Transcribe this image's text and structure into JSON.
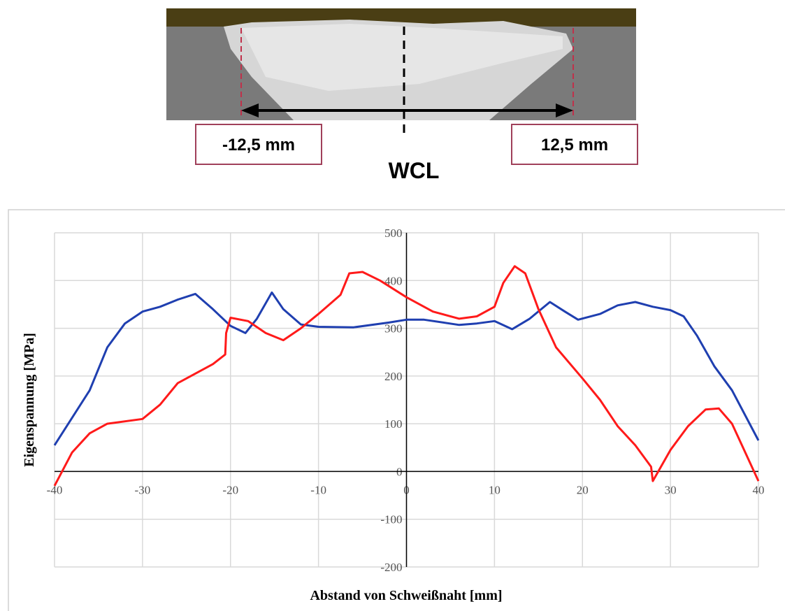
{
  "weld_section": {
    "left_label": "-12,5 mm",
    "right_label": "12,5 mm",
    "center_label": "WCL"
  },
  "chart_data": {
    "type": "line",
    "x_label": "Abstand von Schweißnaht [mm]",
    "y_label": "Eigenspannung [MPa]",
    "xlim": [
      -40,
      40
    ],
    "xticks": [
      -40,
      -30,
      -20,
      -10,
      0,
      10,
      20,
      30,
      40
    ],
    "ylim": [
      -200,
      500
    ],
    "yticks": [
      -200,
      -100,
      0,
      100,
      200,
      300,
      400,
      500
    ],
    "grid": true,
    "series": [
      {
        "color": "#1f3fb0",
        "x": [
          -40,
          -36,
          -34,
          -32,
          -30,
          -28,
          -26,
          -24,
          -22,
          -20,
          -18.3,
          -17,
          -15.3,
          -14,
          -12,
          -10,
          -6,
          -2,
          0,
          2,
          6,
          8,
          10,
          12,
          14,
          16.3,
          18,
          19.5,
          22,
          24,
          26,
          28,
          30,
          31.5,
          33,
          35,
          37,
          40
        ],
        "values": [
          55,
          170,
          260,
          310,
          335,
          345,
          360,
          372,
          340,
          305,
          290,
          320,
          375,
          340,
          308,
          303,
          302,
          312,
          318,
          318,
          307,
          310,
          315,
          298,
          320,
          355,
          335,
          318,
          330,
          348,
          355,
          345,
          338,
          325,
          285,
          220,
          170,
          65
        ]
      },
      {
        "color": "#ff1a1a",
        "x": [
          -40,
          -38,
          -36,
          -34,
          -30,
          -28,
          -26,
          -24,
          -22,
          -20.6,
          -20.5,
          -20,
          -18,
          -16,
          -14,
          -12,
          -10,
          -7.5,
          -6.5,
          -5,
          -3,
          0,
          3,
          6,
          8,
          10,
          11,
          12.3,
          13.5,
          15,
          17,
          20,
          22,
          24,
          26,
          27.8,
          28,
          30,
          32,
          34,
          35.5,
          37,
          40
        ],
        "values": [
          -30,
          40,
          80,
          100,
          110,
          140,
          185,
          205,
          225,
          245,
          290,
          322,
          315,
          290,
          275,
          300,
          330,
          370,
          415,
          418,
          400,
          365,
          335,
          320,
          325,
          345,
          395,
          430,
          415,
          340,
          260,
          195,
          150,
          95,
          55,
          10,
          -20,
          45,
          95,
          130,
          132,
          100,
          -20
        ]
      }
    ]
  }
}
